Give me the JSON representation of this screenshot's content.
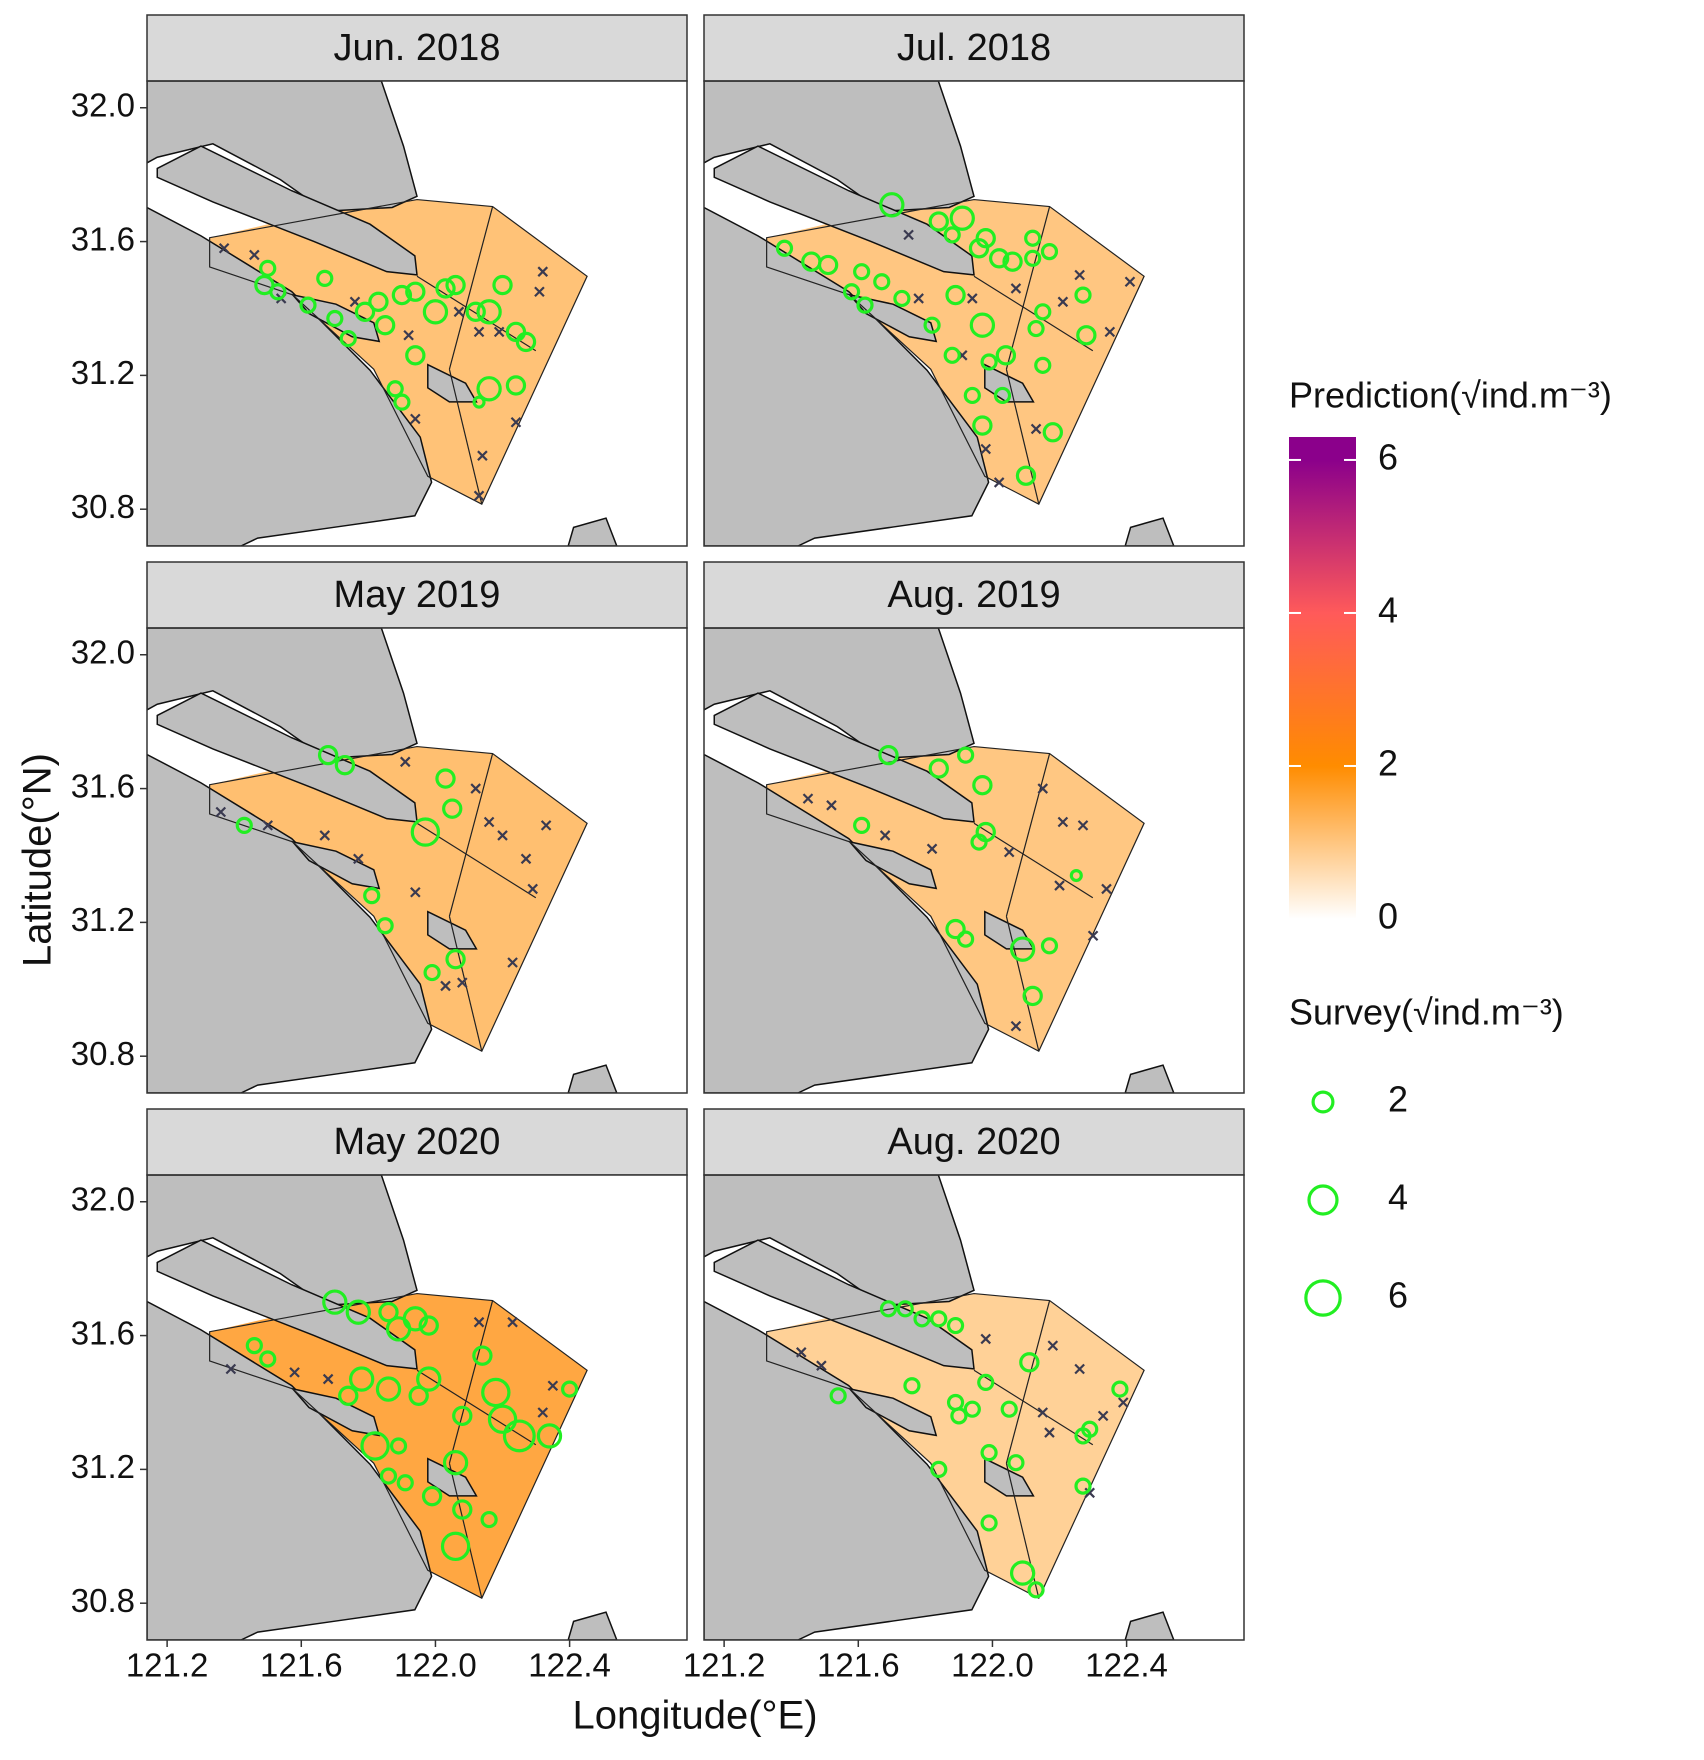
{
  "chart_data": {
    "type": "map",
    "x_label": "Longitude(°E)",
    "y_label": "Latitude(°N)",
    "xlim": [
      121.14,
      122.75
    ],
    "ylim": [
      30.69,
      32.08
    ],
    "xticks": [
      121.2,
      121.6,
      {
        "value": 122,
        "label": "122.0"
      },
      122.4
    ],
    "yticks": [
      30.8,
      31.2,
      31.6,
      {
        "value": 32,
        "label": "32.0"
      }
    ],
    "survey_color": "#22ee22",
    "zero_color": "#3a3a50",
    "panels": [
      {
        "title": "Jun. 2018",
        "survey": {
          "lon": [
            121.5,
            121.49,
            121.53,
            121.67,
            121.62,
            121.7,
            121.74,
            121.79,
            121.83,
            121.85,
            121.9,
            121.94,
            122.0,
            122.03,
            122.06,
            122.12,
            122.16,
            122.2,
            122.24,
            122.27,
            122.16,
            122.24,
            121.88,
            121.9,
            121.94,
            122.13
          ],
          "lat": [
            31.52,
            31.47,
            31.45,
            31.49,
            31.41,
            31.37,
            31.31,
            31.39,
            31.42,
            31.35,
            31.44,
            31.45,
            31.39,
            31.46,
            31.47,
            31.39,
            31.39,
            31.47,
            31.33,
            31.3,
            31.16,
            31.17,
            31.16,
            31.12,
            31.26,
            31.12
          ],
          "values": [
            1,
            1.5,
            1,
            1,
            1,
            1,
            1,
            1.5,
            1.5,
            1.5,
            1.5,
            1.5,
            2.5,
            1.5,
            1.5,
            1.5,
            2.5,
            1.5,
            1.5,
            1.5,
            2.5,
            1.5,
            1,
            1,
            1.5,
            0.5
          ]
        },
        "zero": {
          "lon": [
            121.37,
            121.46,
            121.54,
            121.76,
            121.92,
            122.07,
            122.13,
            122.19,
            122.31,
            122.32,
            122.24,
            122.14,
            122.13,
            121.94
          ],
          "lat": [
            31.58,
            31.56,
            31.43,
            31.42,
            31.32,
            31.39,
            31.33,
            31.33,
            31.45,
            31.51,
            31.06,
            30.96,
            30.84,
            31.07
          ]
        }
      },
      {
        "title": "Jul. 2018",
        "survey": {
          "lon": [
            121.7,
            121.84,
            121.91,
            121.88,
            121.98,
            121.96,
            122.02,
            122.06,
            122.12,
            122.17,
            122.12,
            121.38,
            121.46,
            121.51,
            121.61,
            121.67,
            121.73,
            121.89,
            121.58,
            121.62,
            121.82,
            121.88,
            121.97,
            121.99,
            122.04,
            121.94,
            122.03,
            122.15,
            122.13,
            122.15,
            122.27,
            122.28,
            121.97,
            122.18,
            122.1
          ],
          "lat": [
            31.71,
            31.66,
            31.67,
            31.62,
            31.61,
            31.58,
            31.55,
            31.54,
            31.61,
            31.57,
            31.55,
            31.58,
            31.54,
            31.53,
            31.51,
            31.48,
            31.43,
            31.44,
            31.45,
            31.41,
            31.35,
            31.26,
            31.35,
            31.24,
            31.26,
            31.14,
            31.14,
            31.23,
            31.34,
            31.39,
            31.44,
            31.32,
            31.05,
            31.03,
            30.9
          ],
          "values": [
            2.5,
            1.5,
            2.5,
            1,
            1.5,
            1.5,
            1.5,
            1.5,
            1,
            1,
            1,
            1,
            1.5,
            1.5,
            1,
            1,
            1,
            1.5,
            1,
            1,
            1,
            1,
            2.5,
            1,
            1.5,
            1,
            1,
            1,
            1,
            1,
            1,
            1.5,
            1.5,
            1.5,
            1.5
          ]
        },
        "zero": {
          "lon": [
            121.75,
            121.78,
            121.94,
            122.07,
            122.26,
            122.21,
            122.35,
            122.41,
            121.98,
            122.02,
            121.91,
            122.13
          ],
          "lat": [
            31.62,
            31.43,
            31.43,
            31.46,
            31.5,
            31.42,
            31.33,
            31.48,
            30.98,
            30.88,
            31.26,
            31.04
          ]
        }
      },
      {
        "title": "May 2019",
        "survey": {
          "lon": [
            121.68,
            121.73,
            122.03,
            122.05,
            121.97,
            121.43,
            121.81,
            121.85,
            122.06,
            121.99
          ],
          "lat": [
            31.7,
            31.67,
            31.63,
            31.54,
            31.47,
            31.49,
            31.28,
            31.19,
            31.09,
            31.05
          ],
          "values": [
            1.5,
            1.5,
            1.5,
            1.5,
            3.5,
            1,
            1,
            1,
            1.5,
            1
          ]
        },
        "zero": {
          "lon": [
            121.36,
            121.5,
            121.67,
            121.77,
            121.91,
            122.12,
            122.16,
            122.2,
            122.33,
            122.27,
            122.29,
            122.23,
            122.03,
            122.08,
            121.94
          ],
          "lat": [
            31.53,
            31.49,
            31.46,
            31.39,
            31.68,
            31.6,
            31.5,
            31.46,
            31.49,
            31.39,
            31.3,
            31.08,
            31.01,
            31.02,
            31.29
          ]
        }
      },
      {
        "title": "Aug. 2019",
        "survey": {
          "lon": [
            121.69,
            121.84,
            121.92,
            121.97,
            121.98,
            121.96,
            121.61,
            121.89,
            121.92,
            122.09,
            122.17,
            122.12,
            122.25
          ],
          "lat": [
            31.7,
            31.66,
            31.7,
            31.61,
            31.47,
            31.44,
            31.49,
            31.18,
            31.15,
            31.12,
            31.13,
            30.98,
            31.34
          ],
          "values": [
            1.5,
            1.5,
            1,
            1.5,
            1.5,
            1,
            1,
            1.5,
            1,
            2.5,
            1,
            1.5,
            0.5
          ]
        },
        "zero": {
          "lon": [
            121.45,
            121.52,
            121.68,
            121.82,
            122.15,
            122.21,
            122.27,
            122.05,
            122.34,
            122.2,
            122.07,
            122.3
          ],
          "lat": [
            31.57,
            31.55,
            31.46,
            31.42,
            31.6,
            31.5,
            31.49,
            31.41,
            31.3,
            31.31,
            30.89,
            31.16
          ]
        }
      },
      {
        "title": "May 2020",
        "survey": {
          "lon": [
            121.7,
            121.77,
            121.86,
            121.89,
            121.94,
            121.98,
            121.46,
            121.5,
            121.78,
            121.74,
            121.86,
            121.98,
            121.95,
            122.14,
            122.18,
            122.2,
            122.25,
            122.34,
            122.4,
            121.82,
            121.89,
            121.86,
            121.91,
            121.99,
            122.06,
            122.08,
            122.06,
            122.16,
            122.08
          ],
          "lat": [
            31.7,
            31.67,
            31.67,
            31.62,
            31.65,
            31.63,
            31.57,
            31.53,
            31.47,
            31.42,
            31.44,
            31.47,
            31.42,
            31.54,
            31.43,
            31.35,
            31.3,
            31.3,
            31.44,
            31.27,
            31.27,
            31.18,
            31.16,
            31.12,
            31.22,
            31.08,
            30.97,
            31.05,
            31.36
          ],
          "values": [
            2.5,
            2.5,
            1.5,
            2.5,
            2.5,
            1.5,
            1,
            1,
            2.5,
            1.5,
            2.5,
            2.5,
            1.5,
            1.5,
            3.5,
            3.5,
            4.5,
            2.5,
            1,
            3.5,
            1,
            1,
            1,
            1.5,
            2.5,
            1.5,
            3.5,
            1,
            1.5
          ]
        },
        "zero": {
          "lon": [
            121.39,
            121.58,
            121.68,
            122.23,
            122.35,
            122.32,
            122.13
          ],
          "lat": [
            31.5,
            31.49,
            31.47,
            31.64,
            31.45,
            31.37,
            31.64
          ]
        }
      },
      {
        "title": "Aug. 2020",
        "survey": {
          "lon": [
            121.69,
            121.74,
            121.79,
            121.84,
            121.89,
            121.54,
            121.76,
            121.89,
            121.9,
            121.94,
            121.98,
            122.11,
            122.05,
            121.99,
            122.07,
            121.84,
            121.99,
            122.09,
            122.13,
            122.27,
            122.29,
            122.27,
            122.38
          ],
          "lat": [
            31.68,
            31.68,
            31.65,
            31.65,
            31.63,
            31.42,
            31.45,
            31.4,
            31.36,
            31.38,
            31.46,
            31.52,
            31.38,
            31.25,
            31.22,
            31.2,
            31.04,
            30.89,
            30.84,
            31.3,
            31.32,
            31.15,
            31.44
          ],
          "values": [
            1,
            1,
            1,
            1,
            1,
            1,
            1,
            1,
            1,
            1,
            1,
            1.5,
            1,
            1,
            1,
            1,
            1,
            2.5,
            1,
            1,
            1,
            1,
            1
          ]
        },
        "zero": {
          "lon": [
            121.43,
            121.49,
            122.18,
            122.26,
            122.15,
            122.17,
            122.33,
            122.39,
            121.98,
            122.29
          ],
          "lat": [
            31.55,
            31.51,
            31.57,
            31.5,
            31.37,
            31.31,
            31.36,
            31.4,
            31.59,
            31.13
          ]
        }
      }
    ],
    "prediction_legend": {
      "title": "Prediction(√ind.m⁻³)",
      "clim": [
        0,
        6.3
      ],
      "ticks": [
        0,
        2,
        4,
        6
      ],
      "colors": [
        "#ffffff",
        "#ff8c00",
        "#ff5a5a",
        "#8b008b"
      ]
    },
    "survey_legend": {
      "title": "Survey(√ind.m⁻³)",
      "values": [
        2,
        4,
        6
      ]
    }
  }
}
